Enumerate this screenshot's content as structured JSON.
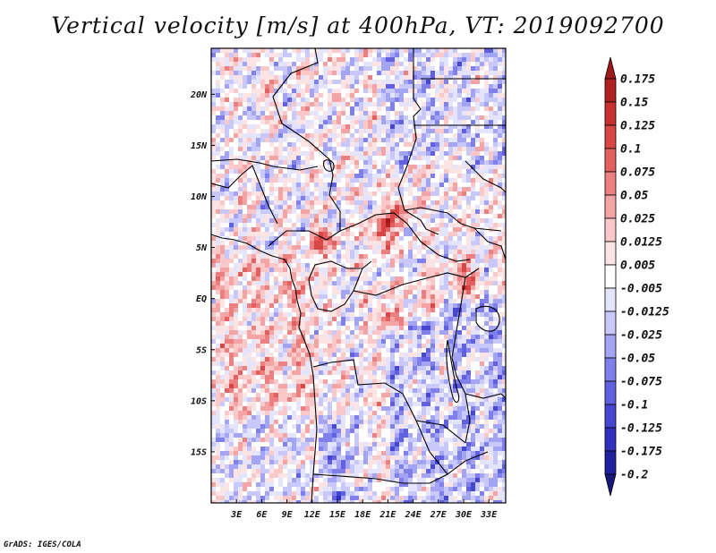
{
  "title": "Vertical velocity [m/s] at 400hPa, VT: 2019092700",
  "footer": "GrADS: IGES/COLA",
  "map": {
    "lat_labels": [
      "20N",
      "15N",
      "10N",
      "5N",
      "EQ",
      "5S",
      "10S",
      "15S"
    ],
    "lat_values": [
      20,
      15,
      10,
      5,
      0,
      -5,
      -10,
      -15
    ],
    "lon_labels": [
      "3E",
      "6E",
      "9E",
      "12E",
      "15E",
      "18E",
      "21E",
      "24E",
      "27E",
      "30E",
      "33E"
    ],
    "lon_values": [
      3,
      6,
      9,
      12,
      15,
      18,
      21,
      24,
      27,
      30,
      33
    ],
    "lon_range": [
      0,
      35
    ],
    "lat_range": [
      -20,
      24.5
    ]
  },
  "colorbar": {
    "labels": [
      "0.175",
      "0.15",
      "0.125",
      "0.1",
      "0.075",
      "0.05",
      "0.025",
      "0.0125",
      "0.005",
      "-0.005",
      "-0.0125",
      "-0.025",
      "-0.05",
      "-0.075",
      "-0.1",
      "-0.125",
      "-0.175",
      "-0.2"
    ],
    "colors": [
      "#a01818",
      "#b02020",
      "#c83030",
      "#d84646",
      "#e46060",
      "#ec8080",
      "#f4a4a4",
      "#fac8c8",
      "#fde4e4",
      "#ffffff",
      "#e4e4fd",
      "#c8c8fa",
      "#a4a4f4",
      "#8080ec",
      "#6060e0",
      "#4646d0",
      "#3030bc",
      "#2020a0",
      "#18187c"
    ]
  }
}
